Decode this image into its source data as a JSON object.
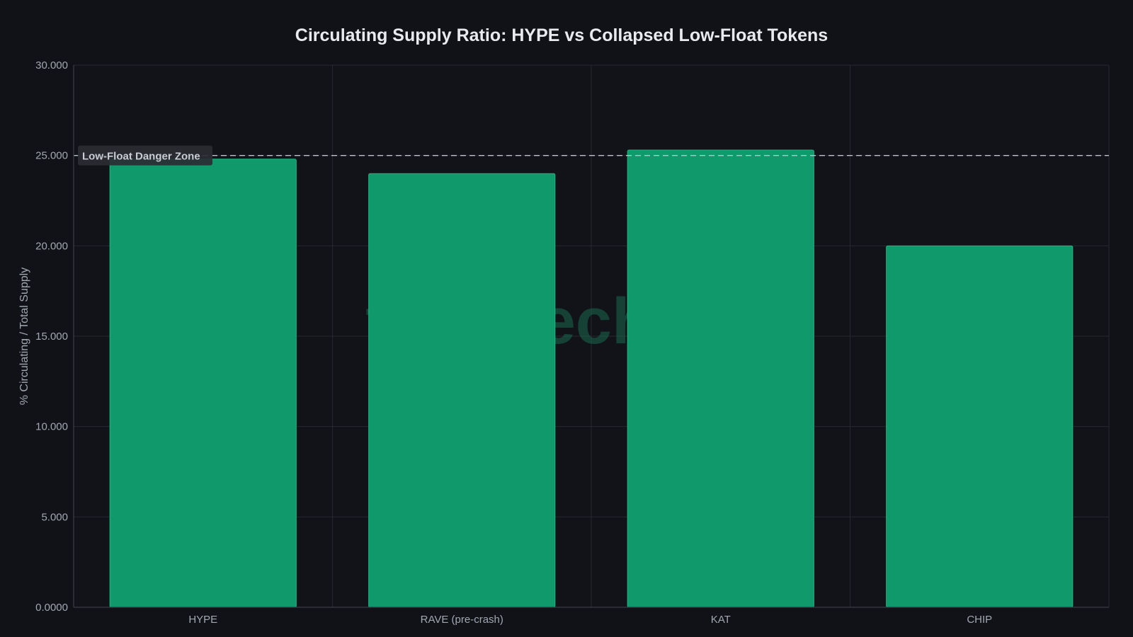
{
  "chart_data": {
    "type": "bar",
    "title": "Circulating Supply Ratio: HYPE vs Collapsed Low-Float Tokens",
    "xlabel": "",
    "ylabel": "% Circulating / Total Supply",
    "categories": [
      "HYPE",
      "RAVE (pre-crash)",
      "KAT",
      "CHIP"
    ],
    "series": [
      {
        "values": [
          24.8,
          24.0,
          25.3,
          20.0
        ]
      }
    ],
    "ylim": [
      0,
      30
    ],
    "yticks": [
      0,
      5,
      10,
      15,
      20,
      25,
      30
    ],
    "ytick_labels": [
      "0.0000",
      "5.000",
      "10.000",
      "15.000",
      "20.000",
      "25.000",
      "30.000"
    ],
    "grid": true,
    "reference_line": {
      "value": 25,
      "label": "Low-Float Danger Zone",
      "style": "dashed"
    },
    "watermark": "tokenecho.io",
    "colors": {
      "background": "#111217",
      "bar": "#10996b",
      "bar_edge": "#1fb580",
      "grid": "#262830",
      "axis": "#3a3d46",
      "text": "#e8eaef",
      "tick_text": "#a3a7b2",
      "reference_line": "#bfc2c9",
      "watermark": "#1a6a50"
    }
  }
}
